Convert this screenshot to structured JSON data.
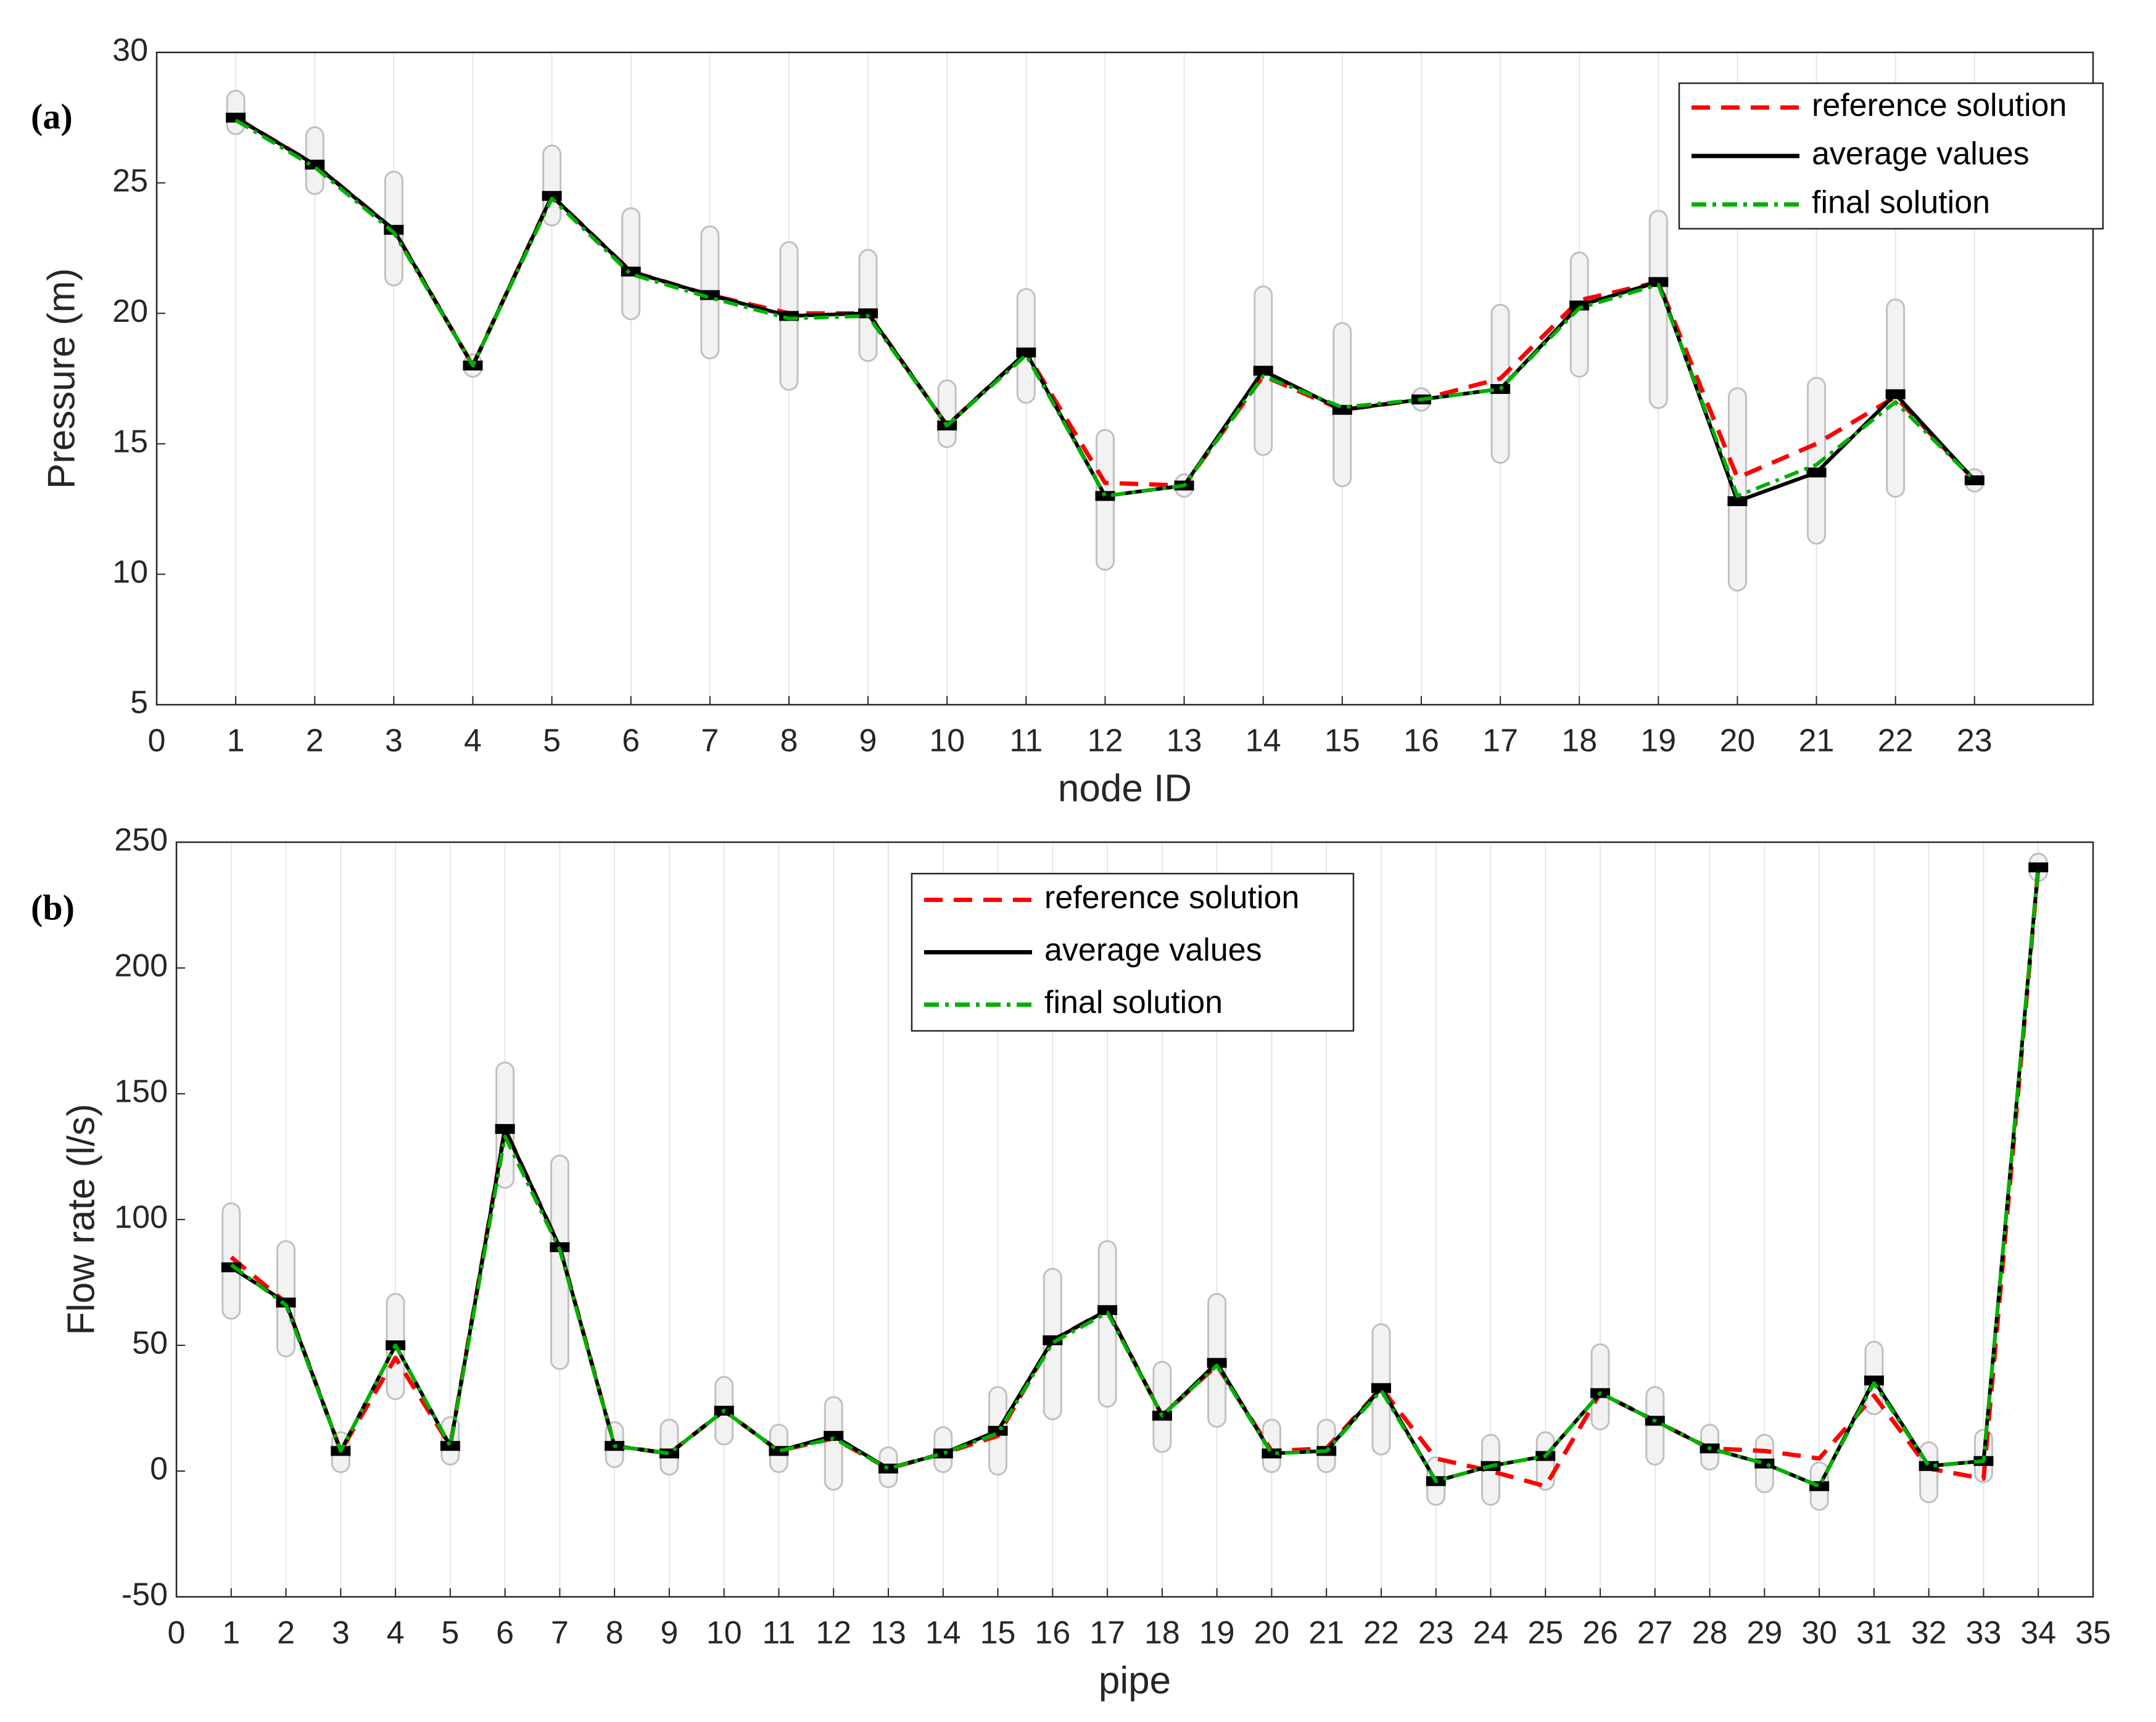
{
  "chart_data": [
    {
      "type": "line",
      "annotation": "(a)",
      "xlabel": "node ID",
      "ylabel": "Pressure (m)",
      "x": [
        1,
        2,
        3,
        4,
        5,
        6,
        7,
        8,
        9,
        10,
        11,
        12,
        13,
        14,
        15,
        16,
        17,
        18,
        19,
        20,
        21,
        22,
        23
      ],
      "xlim": [
        0,
        24.5
      ],
      "xticks": [
        0,
        1,
        2,
        3,
        4,
        5,
        6,
        7,
        8,
        9,
        10,
        11,
        12,
        13,
        14,
        15,
        16,
        17,
        18,
        19,
        20,
        21,
        22,
        23
      ],
      "ylim": [
        5,
        30
      ],
      "yticks": [
        5,
        10,
        15,
        20,
        25,
        30
      ],
      "grid": "x",
      "legend": "upper right",
      "samples_low": [
        27.2,
        24.9,
        21.4,
        17.9,
        23.7,
        20.1,
        18.6,
        17.4,
        18.5,
        15.2,
        16.9,
        10.5,
        13.3,
        14.9,
        13.7,
        16.6,
        14.6,
        17.9,
        16.7,
        9.7,
        11.5,
        13.3,
        13.5
      ],
      "samples_high": [
        28.2,
        26.8,
        25.1,
        18.1,
        26.1,
        23.7,
        23.0,
        22.4,
        22.1,
        17.1,
        20.6,
        15.2,
        13.5,
        20.7,
        19.3,
        16.8,
        20.0,
        22.0,
        23.6,
        16.8,
        17.2,
        20.2,
        13.7
      ],
      "series": [
        {
          "name": "reference solution",
          "color": "#ff0000",
          "dash": "dashed",
          "values": [
            27.5,
            25.7,
            23.2,
            18,
            24.5,
            21.6,
            20.7,
            20.0,
            20.0,
            15.7,
            18.5,
            13.5,
            13.4,
            17.6,
            16.3,
            16.7,
            17.5,
            20.5,
            21.2,
            13.7,
            15.0,
            16.8,
            13.6
          ]
        },
        {
          "name": "average values",
          "color": "#000000",
          "dash": "solid",
          "markers": true,
          "values": [
            27.5,
            25.7,
            23.2,
            18,
            24.5,
            21.6,
            20.7,
            19.9,
            20.0,
            15.7,
            18.5,
            13.0,
            13.4,
            17.8,
            16.3,
            16.7,
            17.1,
            20.3,
            21.2,
            12.8,
            13.9,
            16.9,
            13.6
          ]
        },
        {
          "name": "final solution",
          "color": "#00b000",
          "dash": "dashdot",
          "values": [
            27.4,
            25.6,
            23.1,
            18,
            24.4,
            21.5,
            20.6,
            19.8,
            19.9,
            15.7,
            18.4,
            13.0,
            13.4,
            17.6,
            16.4,
            16.7,
            17.1,
            20.2,
            21.1,
            13.0,
            14.2,
            16.6,
            13.6
          ]
        }
      ]
    },
    {
      "type": "line",
      "annotation": "(b)",
      "xlabel": "pipe",
      "ylabel": "Flow rate (l/s)",
      "x": [
        1,
        2,
        3,
        4,
        5,
        6,
        7,
        8,
        9,
        10,
        11,
        12,
        13,
        14,
        15,
        16,
        17,
        18,
        19,
        20,
        21,
        22,
        23,
        24,
        25,
        26,
        27,
        28,
        29,
        30,
        31,
        32,
        33,
        34
      ],
      "xlim": [
        0,
        35
      ],
      "xticks": [
        0,
        1,
        2,
        3,
        4,
        5,
        6,
        7,
        8,
        9,
        10,
        11,
        12,
        13,
        14,
        15,
        16,
        17,
        18,
        19,
        20,
        21,
        22,
        23,
        24,
        25,
        26,
        27,
        28,
        29,
        30,
        31,
        32,
        33,
        34,
        35
      ],
      "ylim": [
        -50,
        250
      ],
      "yticks": [
        -50,
        0,
        50,
        100,
        150,
        200,
        250
      ],
      "grid": "x",
      "legend": "upper center",
      "samples_low": [
        64,
        49,
        3,
        32,
        6,
        116,
        44,
        5,
        2,
        14,
        3,
        -4,
        -3,
        3,
        2,
        24,
        29,
        11,
        21,
        3,
        3,
        10,
        -10,
        -10,
        -4,
        20,
        6,
        4,
        -5,
        -12,
        26,
        -9,
        -1,
        238
      ],
      "samples_high": [
        103,
        88,
        12,
        67,
        18,
        159,
        122,
        16,
        17,
        34,
        15,
        26,
        6,
        14,
        30,
        77,
        88,
        40,
        67,
        17,
        17,
        55,
        2,
        11,
        12,
        47,
        30,
        15,
        11,
        0,
        48,
        8,
        13,
        242
      ],
      "series": [
        {
          "name": "reference solution",
          "color": "#ff0000",
          "dash": "dashed",
          "values": [
            85,
            67,
            8,
            45,
            10,
            136,
            89,
            10,
            7,
            24,
            8,
            13,
            1,
            7,
            14,
            52,
            64,
            22,
            42,
            8,
            9,
            33,
            5,
            0,
            -6,
            31,
            20,
            9,
            8,
            5,
            30,
            1,
            -3,
            240
          ]
        },
        {
          "name": "average values",
          "color": "#000000",
          "dash": "solid",
          "markers": true,
          "values": [
            81,
            67,
            8,
            50,
            10,
            136,
            89,
            10,
            7,
            24,
            8,
            14,
            1,
            7,
            16,
            52,
            64,
            22,
            43,
            7,
            8,
            33,
            -4,
            2,
            6,
            31,
            20,
            9,
            3,
            -6,
            36,
            2,
            4,
            240
          ]
        },
        {
          "name": "final solution",
          "color": "#00b000",
          "dash": "dashdot",
          "values": [
            82,
            66,
            8,
            50,
            10,
            133,
            88,
            10,
            7,
            24,
            8,
            13,
            1,
            7,
            15,
            51,
            63,
            22,
            42,
            7,
            8,
            32,
            -4,
            2,
            6,
            31,
            20,
            9,
            3,
            -6,
            35,
            2,
            4,
            240
          ]
        }
      ]
    }
  ]
}
